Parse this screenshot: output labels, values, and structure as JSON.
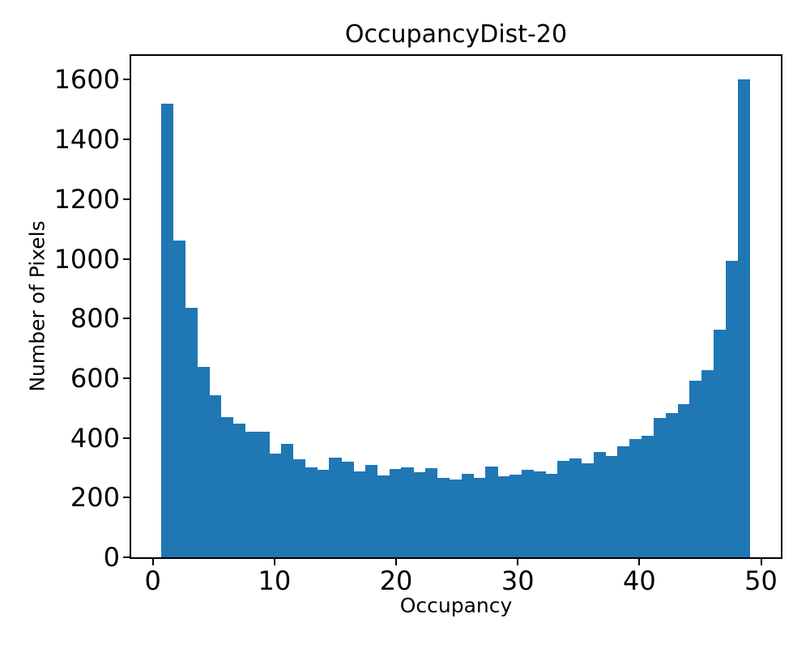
{
  "title": "OccupancyDist-20",
  "chart_data": {
    "type": "histogram",
    "title": "OccupancyDist-20",
    "xlabel": "Occupancy",
    "ylabel": "Number of Pixels",
    "bar_color": "#1f77b4",
    "background_color": "#ffffff",
    "axis_color": "#000000",
    "bin_start": 0.66,
    "bin_width": 0.988,
    "xlim": [
      -1.78,
      51.63
    ],
    "ylim": [
      0,
      1680
    ],
    "xticks": [
      0,
      10,
      20,
      30,
      40,
      50
    ],
    "yticks": [
      0,
      200,
      400,
      600,
      800,
      1000,
      1200,
      1400,
      1600
    ],
    "grid": false,
    "legend": null,
    "values": [
      1520,
      1060,
      836,
      638,
      542,
      470,
      449,
      420,
      421,
      348,
      381,
      328,
      301,
      292,
      333,
      319,
      289,
      310,
      274,
      295,
      302,
      285,
      298,
      265,
      261,
      280,
      265,
      303,
      272,
      276,
      292,
      287,
      280,
      324,
      330,
      316,
      353,
      340,
      371,
      396,
      406,
      466,
      483,
      514,
      593,
      628,
      764,
      993,
      1600
    ]
  }
}
